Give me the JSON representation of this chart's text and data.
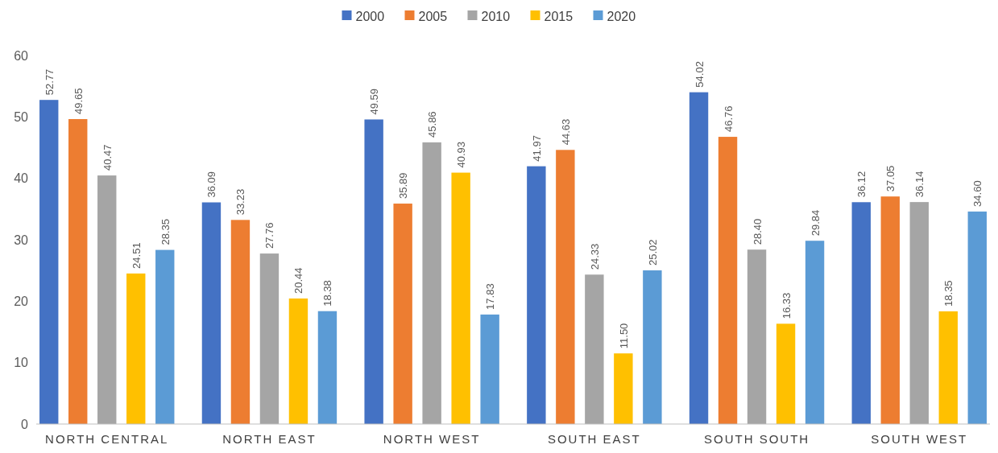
{
  "chart_data": {
    "type": "bar",
    "categories": [
      "NORTH CENTRAL",
      "NORTH EAST",
      "NORTH WEST",
      "SOUTH EAST",
      "SOUTH SOUTH",
      "SOUTH WEST"
    ],
    "series": [
      {
        "name": "2000",
        "color": "#4472c4",
        "values": [
          52.77,
          36.09,
          49.59,
          41.97,
          54.02,
          36.12
        ],
        "value_labels": [
          "52.77",
          "36.09",
          "49.59",
          "41.97",
          "54.02",
          "36.12"
        ]
      },
      {
        "name": "2005",
        "color": "#ed7d31",
        "values": [
          49.65,
          33.23,
          35.89,
          44.63,
          46.76,
          37.05
        ],
        "value_labels": [
          "49.65",
          "33.23",
          "35.89",
          "44.63",
          "46.76",
          "37.05"
        ]
      },
      {
        "name": "2010",
        "color": "#a5a5a5",
        "values": [
          40.47,
          27.76,
          45.86,
          24.33,
          28.4,
          36.14
        ],
        "value_labels": [
          "40.47",
          "27.76",
          "45.86",
          "24.33",
          "28.40",
          "36.14"
        ]
      },
      {
        "name": "2015",
        "color": "#ffc000",
        "values": [
          24.51,
          20.44,
          40.93,
          11.5,
          16.33,
          18.35
        ],
        "value_labels": [
          "24.51",
          "20.44",
          "40.93",
          "11.50",
          "16.33",
          "18.35"
        ]
      },
      {
        "name": "2020",
        "color": "#5b9bd5",
        "values": [
          28.35,
          18.38,
          17.83,
          25.02,
          29.84,
          34.6
        ],
        "value_labels": [
          "28.35",
          "18.38",
          "17.83",
          "25.02",
          "29.84",
          "34.60"
        ]
      }
    ],
    "ylim": [
      0,
      60
    ],
    "yticks": [
      0,
      10,
      20,
      30,
      40,
      50,
      60
    ],
    "grid": false,
    "legend": "top"
  }
}
